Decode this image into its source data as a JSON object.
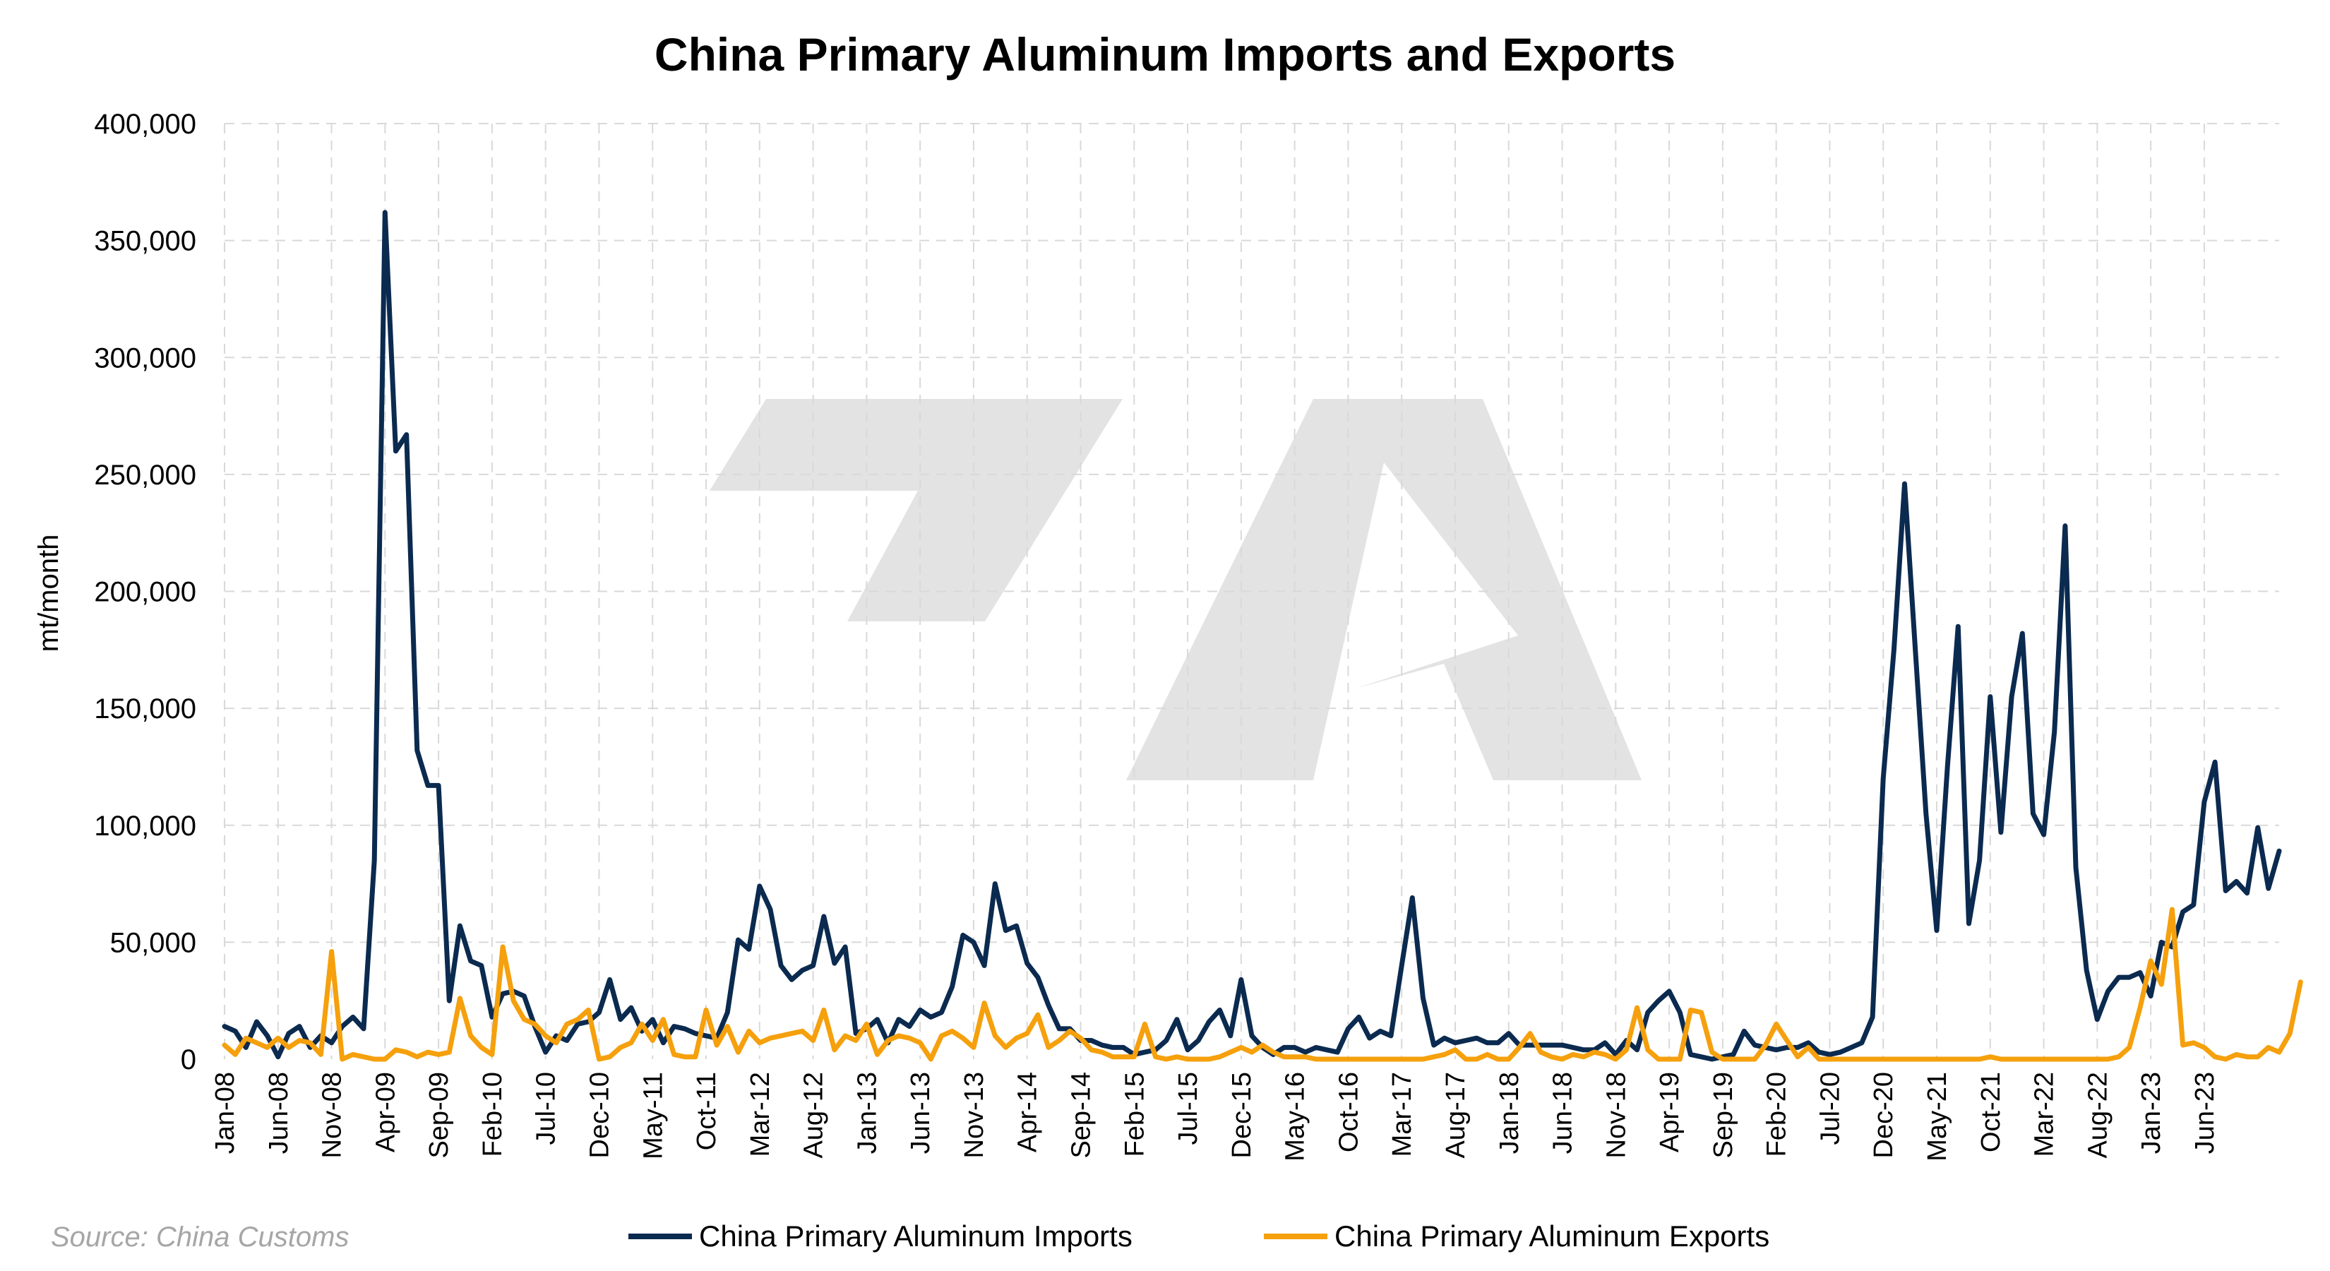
{
  "chart_data": {
    "type": "line",
    "title": "China Primary Aluminum Imports and Exports",
    "ylabel": "mt/month",
    "xlabel": "",
    "ylim": [
      0,
      400000
    ],
    "yticks": [
      "0",
      "50,000",
      "100,000",
      "150,000",
      "200,000",
      "250,000",
      "300,000",
      "350,000",
      "400,000"
    ],
    "x_tick_labels": [
      "Jan-08",
      "Jun-08",
      "Nov-08",
      "Apr-09",
      "Sep-09",
      "Feb-10",
      "Jul-10",
      "Dec-10",
      "May-11",
      "Oct-11",
      "Mar-12",
      "Aug-12",
      "Jan-13",
      "Jun-13",
      "Nov-13",
      "Apr-14",
      "Sep-14",
      "Feb-15",
      "Jul-15",
      "Dec-15",
      "May-16",
      "Oct-16",
      "Mar-17",
      "Aug-17",
      "Jan-18",
      "Jun-18",
      "Nov-18",
      "Apr-19",
      "Sep-19",
      "Feb-20",
      "Jul-20",
      "Dec-20",
      "May-21",
      "Oct-21",
      "Mar-22",
      "Aug-22",
      "Jan-23",
      "Jun-23"
    ],
    "grid": "vertical and horizontal dashed",
    "legend_position": "bottom",
    "source": "Source: China Customs",
    "x_start": "Jan-08",
    "x_end": "Jun-23",
    "series": [
      {
        "name": "China Primary Aluminum Imports",
        "color": "#0b2a4f",
        "values": [
          14000,
          12000,
          5000,
          16000,
          10000,
          1000,
          11000,
          14000,
          5000,
          10000,
          7000,
          14000,
          18000,
          13000,
          85000,
          362000,
          260000,
          267000,
          132000,
          117000,
          117000,
          25000,
          57000,
          42000,
          40000,
          18000,
          28000,
          29000,
          27000,
          14000,
          3000,
          10000,
          8000,
          15000,
          16000,
          20000,
          34000,
          17000,
          22000,
          12000,
          17000,
          7000,
          14000,
          13000,
          11000,
          10000,
          9000,
          20000,
          51000,
          47000,
          74000,
          64000,
          40000,
          34000,
          38000,
          40000,
          61000,
          41000,
          48000,
          11000,
          13000,
          17000,
          7000,
          17000,
          14000,
          21000,
          18000,
          20000,
          31000,
          53000,
          50000,
          40000,
          75000,
          55000,
          57000,
          41000,
          35000,
          23000,
          13000,
          13000,
          8000,
          8000,
          6000,
          5000,
          5000,
          2000,
          3000,
          4000,
          8000,
          17000,
          4000,
          8000,
          16000,
          21000,
          10000,
          34000,
          10000,
          5000,
          2000,
          5000,
          5000,
          3000,
          5000,
          4000,
          3000,
          13000,
          18000,
          9000,
          12000,
          10000,
          40000,
          69000,
          26000,
          6000,
          9000,
          7000,
          8000,
          9000,
          7000,
          7000,
          11000,
          6000,
          6000,
          6000,
          6000,
          6000,
          5000,
          4000,
          4000,
          7000,
          2000,
          8000,
          4000,
          20000,
          25000,
          29000,
          20000,
          2000,
          1000,
          0,
          1000,
          2000,
          12000,
          6000,
          5000,
          4000,
          5000,
          5000,
          7000,
          3000,
          2000,
          3000,
          5000,
          7000,
          18000,
          120000,
          175000,
          246000,
          175000,
          105000,
          55000,
          125000,
          185000,
          58000,
          85000,
          155000,
          97000,
          155000,
          182000,
          105000,
          96000,
          140000,
          228000,
          82000,
          38000,
          17000,
          29000,
          35000,
          35000,
          37000,
          27000,
          50000,
          48000,
          63000,
          66000,
          110000,
          127000,
          72000,
          76000,
          71000,
          99000,
          73000,
          89000
        ]
      },
      {
        "name": "China Primary Aluminum Exports",
        "color": "#f5a00c",
        "values": [
          6000,
          2000,
          9000,
          7000,
          5000,
          9000,
          5000,
          8000,
          7000,
          2000,
          46000,
          0,
          2000,
          1000,
          0,
          0,
          4000,
          3000,
          1000,
          3000,
          2000,
          3000,
          26000,
          10000,
          5000,
          2000,
          48000,
          25000,
          17000,
          15000,
          10000,
          7000,
          15000,
          17000,
          21000,
          0,
          1000,
          5000,
          7000,
          15000,
          8000,
          17000,
          2000,
          1000,
          1000,
          21000,
          6000,
          14000,
          3000,
          12000,
          7000,
          9000,
          10000,
          11000,
          12000,
          8000,
          21000,
          4000,
          10000,
          8000,
          15000,
          2000,
          8000,
          10000,
          9000,
          7000,
          0,
          10000,
          12000,
          9000,
          5000,
          24000,
          10000,
          5000,
          9000,
          11000,
          19000,
          5000,
          8000,
          12000,
          9000,
          4000,
          3000,
          1000,
          1000,
          1000,
          15000,
          1000,
          0,
          1000,
          0,
          0,
          0,
          1000,
          3000,
          5000,
          3000,
          6000,
          3000,
          1000,
          1000,
          1000,
          0,
          0,
          0,
          0,
          0,
          0,
          0,
          0,
          0,
          0,
          0,
          1000,
          2000,
          4000,
          0,
          0,
          2000,
          0,
          0,
          5000,
          11000,
          3000,
          1000,
          0,
          2000,
          1000,
          3000,
          2000,
          0,
          4000,
          22000,
          4000,
          0,
          0,
          0,
          21000,
          20000,
          3000,
          0,
          0,
          0,
          0,
          6000,
          15000,
          8000,
          1000,
          5000,
          0,
          0,
          0,
          0,
          0,
          0,
          0,
          0,
          0,
          0,
          0,
          0,
          0,
          0,
          0,
          0,
          1000,
          0,
          0,
          0,
          0,
          0,
          0,
          0,
          0,
          0,
          0,
          0,
          1000,
          5000,
          22000,
          42000,
          32000,
          64000,
          6000,
          7000,
          5000,
          1000,
          0,
          2000,
          1000,
          1000,
          5000,
          3000,
          11000,
          33000
        ]
      }
    ]
  }
}
